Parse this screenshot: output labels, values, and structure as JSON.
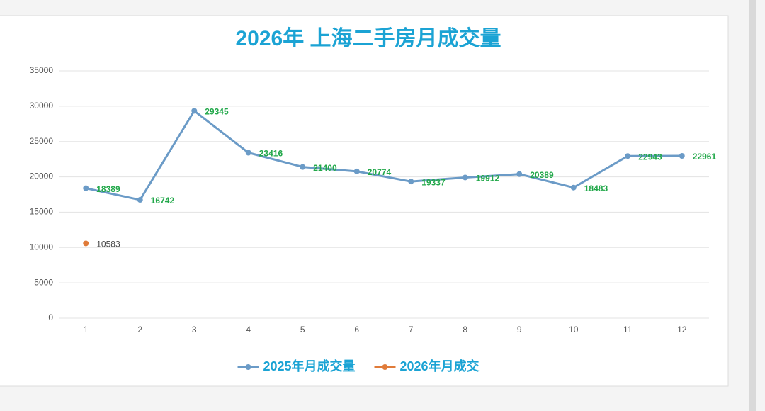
{
  "chart_data": {
    "type": "line",
    "title": "2026年 上海二手房月成交量",
    "categories": [
      "1",
      "2",
      "3",
      "4",
      "5",
      "6",
      "7",
      "8",
      "9",
      "10",
      "11",
      "12"
    ],
    "series": [
      {
        "name": "2025年月成交量",
        "color": "#6b9bc7",
        "label_color": "#22a84a",
        "values": [
          18389,
          16742,
          29345,
          23416,
          21400,
          20774,
          19337,
          19912,
          20389,
          18483,
          22943,
          22961
        ]
      },
      {
        "name": "2026年月成交",
        "color": "#e07b39",
        "label_color": "#444444",
        "values": [
          10583,
          null,
          null,
          null,
          null,
          null,
          null,
          null,
          null,
          null,
          null,
          null
        ]
      }
    ],
    "ylim": [
      0,
      35000
    ],
    "yticks": [
      0,
      5000,
      10000,
      15000,
      20000,
      25000,
      30000,
      35000
    ],
    "grid": true,
    "legend": "bottom"
  }
}
